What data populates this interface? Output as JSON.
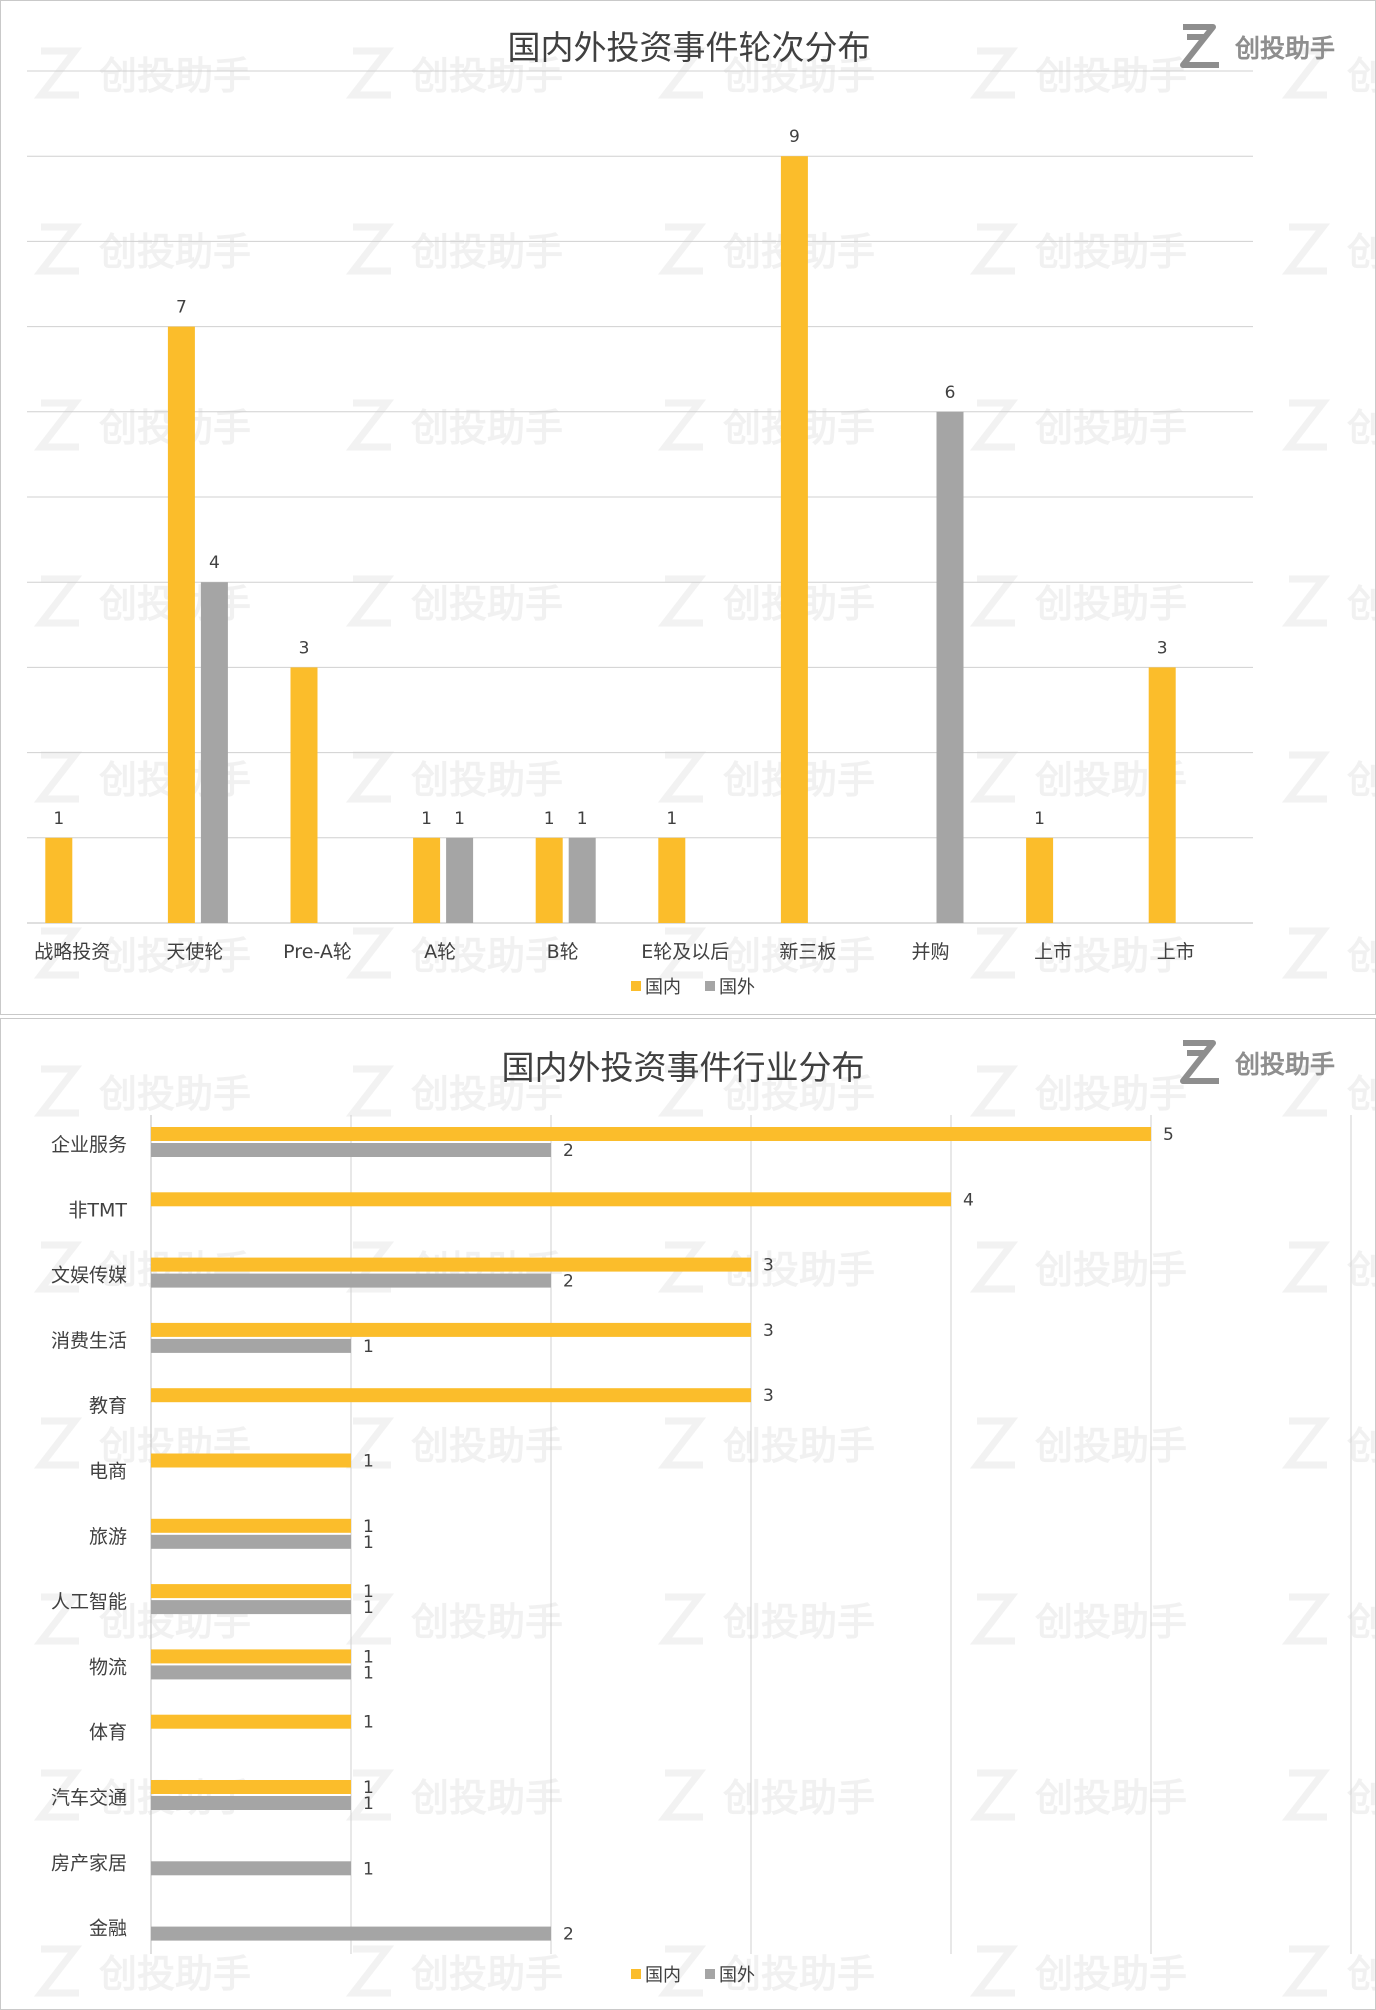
{
  "brand": {
    "logo_text": "创投助手",
    "watermark_text": "创投助手"
  },
  "colors": {
    "domestic": "#fbbd2b",
    "foreign": "#a5a5a5",
    "grid": "#d0d0d0"
  },
  "chart_data": [
    {
      "type": "bar",
      "title": "国内外投资事件轮次分布",
      "categories": [
        "战略投资",
        "天使轮",
        "Pre-A轮",
        "A轮",
        "B轮",
        "E轮及以后",
        "新三板",
        "并购",
        "上市",
        "上市"
      ],
      "series": [
        {
          "name": "国内",
          "values": [
            1,
            7,
            3,
            1,
            1,
            1,
            9,
            null,
            1,
            3
          ]
        },
        {
          "name": "国外",
          "values": [
            null,
            4,
            null,
            1,
            1,
            null,
            null,
            6,
            null,
            null
          ]
        }
      ],
      "ylim": [
        0,
        10
      ],
      "grid": true,
      "legend": "bottom"
    },
    {
      "type": "bar",
      "orientation": "horizontal",
      "title": "国内外投资事件行业分布",
      "categories": [
        "企业服务",
        "非TMT",
        "文娱传媒",
        "消费生活",
        "教育",
        "电商",
        "旅游",
        "人工智能",
        "物流",
        "体育",
        "汽车交通",
        "房产家居",
        "金融"
      ],
      "series": [
        {
          "name": "国内",
          "values": [
            5,
            4,
            3,
            3,
            3,
            1,
            1,
            1,
            1,
            1,
            1,
            null,
            null
          ]
        },
        {
          "name": "国外",
          "values": [
            2,
            null,
            2,
            1,
            null,
            null,
            1,
            1,
            1,
            null,
            1,
            1,
            2
          ]
        }
      ],
      "xlim": [
        0,
        6
      ],
      "grid": true,
      "legend": "bottom"
    }
  ]
}
